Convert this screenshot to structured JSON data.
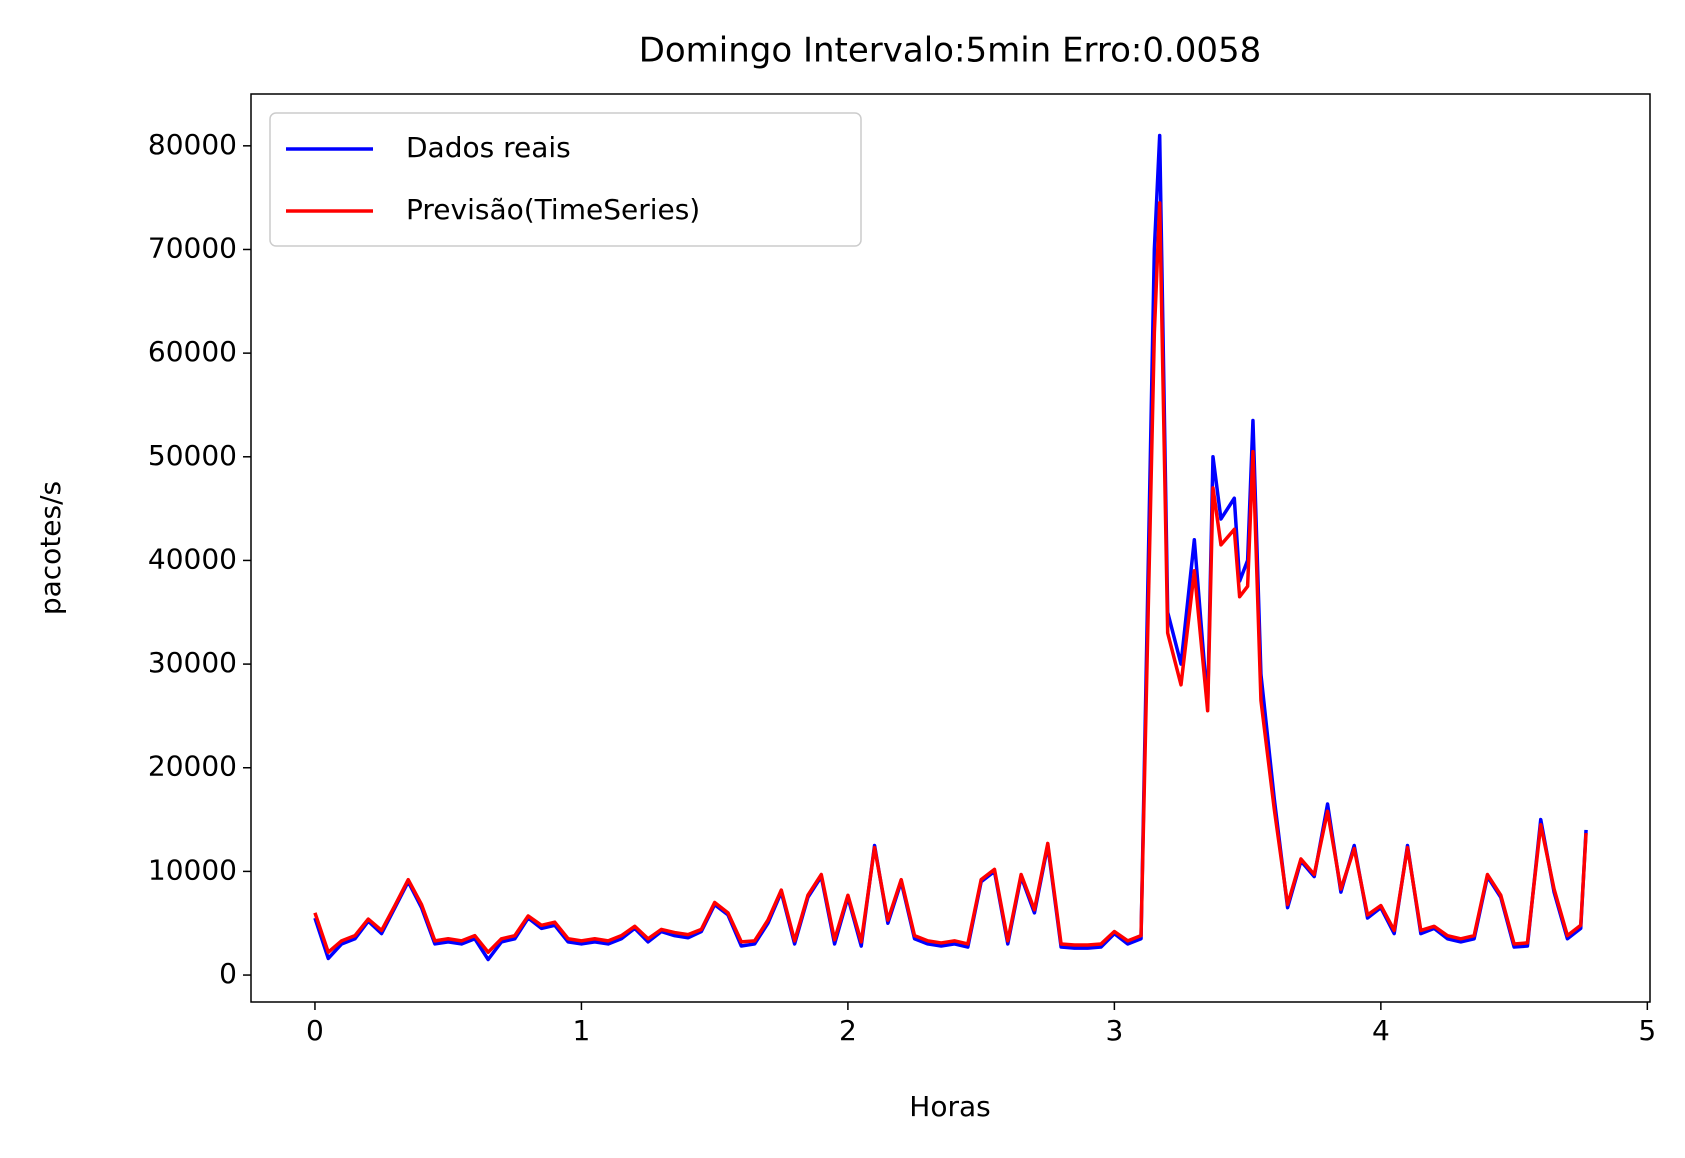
{
  "chart_data": {
    "type": "line",
    "title": "Domingo Intervalo:5min Erro:0.0058",
    "xlabel": "Horas",
    "ylabel": "pacotes/s",
    "x": [
      0,
      0.05,
      0.1,
      0.15,
      0.2,
      0.25,
      0.3,
      0.35,
      0.4,
      0.45,
      0.5,
      0.55,
      0.6,
      0.65,
      0.7,
      0.75,
      0.8,
      0.85,
      0.9,
      0.95,
      1.0,
      1.05,
      1.1,
      1.15,
      1.2,
      1.25,
      1.3,
      1.35,
      1.4,
      1.45,
      1.5,
      1.55,
      1.6,
      1.65,
      1.7,
      1.75,
      1.8,
      1.85,
      1.9,
      1.95,
      2.0,
      2.05,
      2.1,
      2.15,
      2.2,
      2.25,
      2.3,
      2.35,
      2.4,
      2.45,
      2.5,
      2.55,
      2.6,
      2.65,
      2.7,
      2.75,
      2.8,
      2.85,
      2.9,
      2.95,
      3.0,
      3.05,
      3.1,
      3.15,
      3.17,
      3.2,
      3.25,
      3.3,
      3.35,
      3.37,
      3.4,
      3.45,
      3.47,
      3.5,
      3.52,
      3.55,
      3.6,
      3.65,
      3.7,
      3.75,
      3.8,
      3.85,
      3.9,
      3.95,
      4.0,
      4.05,
      4.1,
      4.15,
      4.2,
      4.25,
      4.3,
      4.35,
      4.4,
      4.45,
      4.5,
      4.55,
      4.6,
      4.65,
      4.7,
      4.75,
      4.77
    ],
    "series": [
      {
        "name": "Dados reais",
        "color": "#0000ff",
        "values": [
          5500,
          1600,
          3000,
          3500,
          5200,
          4000,
          6500,
          9000,
          6500,
          3000,
          3200,
          3000,
          3500,
          1500,
          3200,
          3500,
          5500,
          4500,
          4800,
          3200,
          3000,
          3200,
          3000,
          3500,
          4500,
          3200,
          4200,
          3800,
          3600,
          4200,
          6800,
          5800,
          2800,
          3000,
          5000,
          8000,
          3000,
          7500,
          9500,
          3000,
          7500,
          2800,
          12500,
          5000,
          9000,
          3500,
          3000,
          2800,
          3000,
          2700,
          9000,
          10000,
          3000,
          9500,
          6000,
          12500,
          2700,
          2600,
          2600,
          2700,
          4000,
          3000,
          3500,
          70000,
          81000,
          35000,
          30000,
          42000,
          26000,
          50000,
          44000,
          46000,
          38000,
          40000,
          53500,
          29000,
          17000,
          6500,
          11000,
          9500,
          16500,
          8000,
          12500,
          5500,
          6500,
          4000,
          12500,
          4000,
          4500,
          3500,
          3200,
          3500,
          9500,
          7500,
          2700,
          2800,
          15000,
          8000,
          3500,
          4500,
          14000
        ]
      },
      {
        "name": "Previsão(TimeSeries)",
        "color": "#ff0000",
        "values": [
          6000,
          2200,
          3300,
          3800,
          5400,
          4300,
          6700,
          9200,
          6800,
          3300,
          3500,
          3300,
          3800,
          2200,
          3500,
          3800,
          5700,
          4800,
          5100,
          3500,
          3300,
          3500,
          3300,
          3800,
          4700,
          3500,
          4400,
          4100,
          3900,
          4400,
          7000,
          6000,
          3200,
          3300,
          5300,
          8200,
          3300,
          7700,
          9700,
          3400,
          7700,
          3200,
          12300,
          5300,
          9200,
          3800,
          3300,
          3100,
          3300,
          3000,
          9200,
          10200,
          3300,
          9700,
          6300,
          12700,
          3000,
          2900,
          2900,
          3000,
          4200,
          3300,
          3800,
          62000,
          74500,
          33000,
          28000,
          39000,
          25500,
          47000,
          41500,
          43000,
          36500,
          37500,
          50500,
          26500,
          16000,
          6800,
          11200,
          9700,
          15800,
          8300,
          12200,
          5800,
          6700,
          4300,
          12300,
          4300,
          4700,
          3800,
          3500,
          3800,
          9700,
          7700,
          3000,
          3100,
          14500,
          8300,
          3800,
          4800,
          13700
        ]
      }
    ],
    "xlim": [
      -0.24,
      5.01
    ],
    "xticks": [
      0,
      1,
      2,
      3,
      4,
      5
    ],
    "ylim": [
      -2600,
      85000
    ],
    "yticks": [
      0,
      10000,
      20000,
      30000,
      40000,
      50000,
      60000,
      70000,
      80000
    ],
    "legend": "upper left",
    "grid": false
  }
}
